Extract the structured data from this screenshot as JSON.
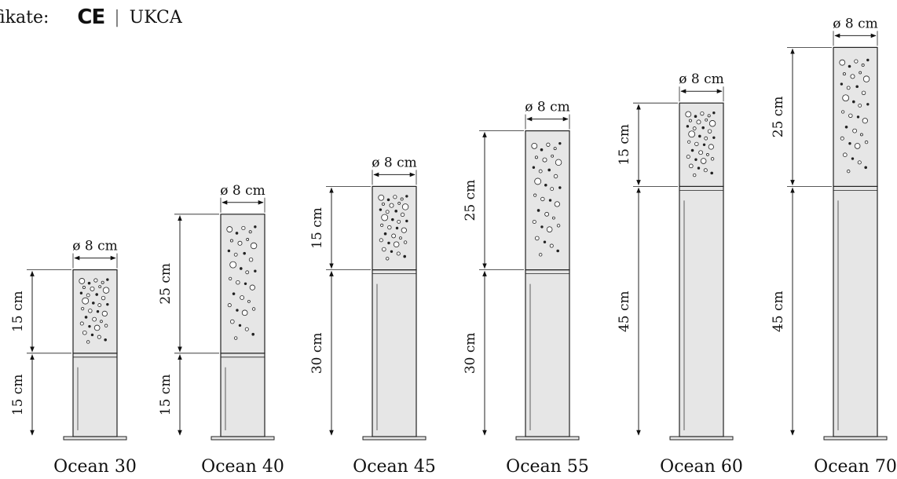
{
  "certificates": {
    "label": "fikate:",
    "marks": [
      "CE",
      "UKCA"
    ],
    "separator": "|"
  },
  "diameter_label": "ø 8 cm",
  "products": [
    {
      "name": "Ocean 30",
      "head_cm": 15,
      "post_cm": 15,
      "head_label": "15 cm",
      "post_label": "15 cm"
    },
    {
      "name": "Ocean 40",
      "head_cm": 25,
      "post_cm": 15,
      "head_label": "25 cm",
      "post_label": "15 cm"
    },
    {
      "name": "Ocean 45",
      "head_cm": 15,
      "post_cm": 30,
      "head_label": "15 cm",
      "post_label": "30 cm"
    },
    {
      "name": "Ocean 55",
      "head_cm": 25,
      "post_cm": 30,
      "head_label": "25 cm",
      "post_label": "30 cm"
    },
    {
      "name": "Ocean 60",
      "head_cm": 15,
      "post_cm": 45,
      "head_label": "15 cm",
      "post_label": "45 cm"
    },
    {
      "name": "Ocean 70",
      "head_cm": 25,
      "post_cm": 45,
      "head_label": "25 cm",
      "post_label": "45 cm"
    }
  ],
  "colors": {
    "body_fill": "#e6e6e6",
    "stroke": "#222222",
    "background": "#ffffff"
  }
}
